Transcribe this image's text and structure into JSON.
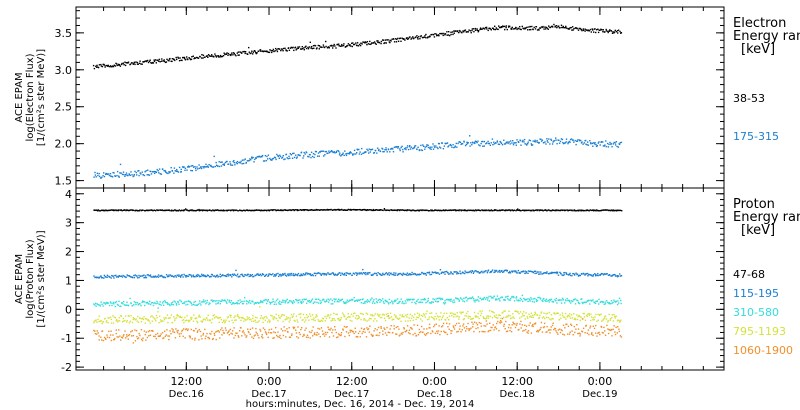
{
  "chart_data": [
    {
      "type": "scatter",
      "panel": "electron",
      "ylabel": [
        "ACE EPAM",
        "log(Electron Flux)",
        "[1/(cm²s ster MeV)]"
      ],
      "ylim": [
        1.4,
        3.85
      ],
      "yticks": [
        "1.5",
        "2.0",
        "2.5",
        "3.0",
        "3.5"
      ],
      "legend_title": [
        "Electron",
        "Energy ran",
        "[keV]"
      ],
      "grid": false,
      "series": [
        {
          "name": "38-53",
          "color": "#000000",
          "x": [
            0,
            6,
            12,
            18,
            24,
            30,
            36,
            42,
            48,
            54,
            60,
            66,
            69,
            72,
            78
          ],
          "y": [
            3.05,
            3.1,
            3.15,
            3.2,
            3.25,
            3.3,
            3.33,
            3.38,
            3.45,
            3.52,
            3.58,
            3.57,
            3.6,
            3.55,
            3.52
          ]
        },
        {
          "name": "175-315",
          "color": "#1a7fd1",
          "x": [
            0,
            6,
            12,
            18,
            24,
            30,
            36,
            42,
            48,
            54,
            60,
            66,
            69,
            72,
            78
          ],
          "y": [
            1.58,
            1.6,
            1.65,
            1.72,
            1.8,
            1.85,
            1.88,
            1.92,
            1.95,
            2.0,
            2.02,
            2.03,
            2.05,
            2.02,
            2.0
          ]
        }
      ]
    },
    {
      "type": "scatter",
      "panel": "proton",
      "ylabel": [
        "ACE EPAM",
        "log(Proton Flux)",
        "[1/(cm²s ster MeV)]"
      ],
      "ylim": [
        -2.1,
        4.2
      ],
      "yticks": [
        "-2",
        "-1",
        "0",
        "1",
        "2",
        "3",
        "4"
      ],
      "legend_title": [
        "Proton",
        "Energy ran",
        "[keV]"
      ],
      "grid": false,
      "series": [
        {
          "name": "47-68",
          "color": "#000000",
          "x": [
            0,
            12,
            24,
            36,
            48,
            60,
            72,
            78
          ],
          "y": [
            3.45,
            3.45,
            3.45,
            3.47,
            3.45,
            3.45,
            3.45,
            3.45
          ]
        },
        {
          "name": "115-195",
          "color": "#1a7fd1",
          "x": [
            0,
            12,
            24,
            36,
            48,
            60,
            72,
            78
          ],
          "y": [
            1.15,
            1.18,
            1.2,
            1.25,
            1.25,
            1.35,
            1.22,
            1.2
          ]
        },
        {
          "name": "310-580",
          "color": "#33dddd",
          "x": [
            0,
            12,
            24,
            36,
            48,
            60,
            72,
            78
          ],
          "y": [
            0.2,
            0.25,
            0.28,
            0.3,
            0.3,
            0.4,
            0.3,
            0.25
          ]
        },
        {
          "name": "795-1193",
          "color": "#d4e23a",
          "x": [
            0,
            12,
            24,
            36,
            48,
            60,
            72,
            78
          ],
          "y": [
            -0.35,
            -0.3,
            -0.3,
            -0.25,
            -0.25,
            -0.15,
            -0.25,
            -0.3
          ]
        },
        {
          "name": "1060-1900",
          "color": "#f0902a",
          "x": [
            0,
            12,
            24,
            36,
            48,
            60,
            72,
            78
          ],
          "y": [
            -0.9,
            -0.85,
            -0.8,
            -0.75,
            -0.7,
            -0.55,
            -0.7,
            -0.75
          ]
        }
      ]
    }
  ],
  "x_axis": {
    "xlabel": "hours:minutes, Dec. 16, 2014 - Dec. 19, 2014",
    "ticks": [
      {
        "hour": 12,
        "time": "12:00",
        "date": "Dec.16"
      },
      {
        "hour": 24,
        "time": "0:00",
        "date": "Dec.17"
      },
      {
        "hour": 36,
        "time": "12:00",
        "date": "Dec.17"
      },
      {
        "hour": 48,
        "time": "0:00",
        "date": "Dec.18"
      },
      {
        "hour": 60,
        "time": "12:00",
        "date": "Dec.18"
      },
      {
        "hour": 72,
        "time": "0:00",
        "date": "Dec.19"
      }
    ]
  }
}
